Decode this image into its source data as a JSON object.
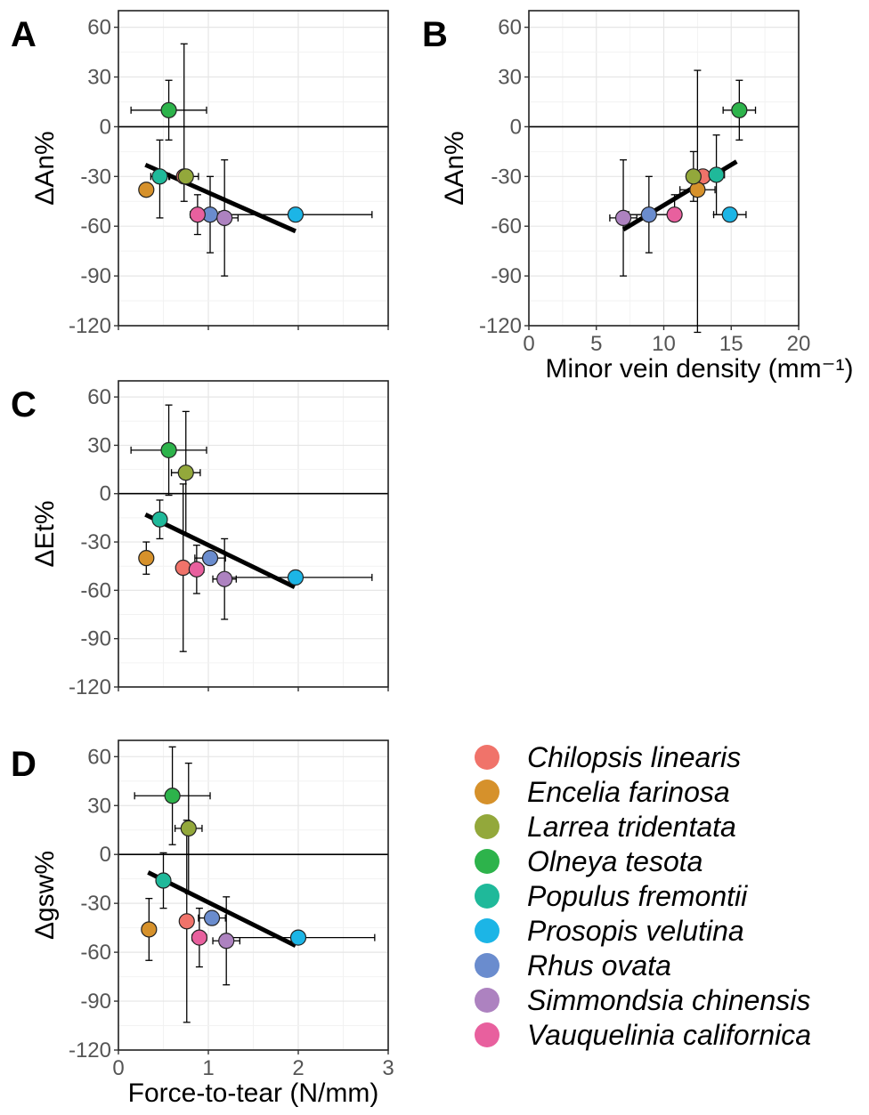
{
  "chart_data": [
    {
      "type": "scatter",
      "panel_label": "A",
      "xlabel": "",
      "ylabel": "ΔAn%",
      "xlim": [
        0,
        3
      ],
      "ylim": [
        -120,
        70
      ],
      "xticks": [
        0,
        1,
        2,
        3
      ],
      "yticks": [
        60,
        30,
        0,
        -30,
        -60,
        -90,
        -120
      ],
      "show_xtick_labels": false,
      "grid": true,
      "zero_line": true,
      "fit_line": [
        [
          0.3,
          -23
        ],
        [
          1.97,
          -63
        ]
      ],
      "points": [
        {
          "species": "Chilopsis linearis",
          "x": 0.73,
          "y": -30,
          "xerr": 0.16,
          "yerr": [
            80,
            15
          ]
        },
        {
          "species": "Encelia farinosa",
          "x": 0.31,
          "y": -38,
          "xerr": 0,
          "yerr": [
            0,
            0
          ]
        },
        {
          "species": "Larrea tridentata",
          "x": 0.75,
          "y": -30,
          "xerr": 0,
          "yerr": [
            0,
            0
          ]
        },
        {
          "species": "Olneya tesota",
          "x": 0.56,
          "y": 10,
          "xerr": 0.42,
          "yerr": [
            18,
            18
          ]
        },
        {
          "species": "Populus fremontii",
          "x": 0.46,
          "y": -30,
          "xerr": 0.1,
          "yerr": [
            22,
            25
          ]
        },
        {
          "species": "Prosopis velutina",
          "x": 1.97,
          "y": -53,
          "xerr": 0.85,
          "yerr": [
            0,
            0
          ]
        },
        {
          "species": "Rhus ovata",
          "x": 1.02,
          "y": -53,
          "xerr": 0.13,
          "yerr": [
            23,
            23
          ]
        },
        {
          "species": "Simmondsia chinensis",
          "x": 1.18,
          "y": -55,
          "xerr": 0.15,
          "yerr": [
            35,
            35
          ]
        },
        {
          "species": "Vauquelinia californica",
          "x": 0.88,
          "y": -53,
          "xerr": 0.08,
          "yerr": [
            12,
            12
          ]
        }
      ]
    },
    {
      "type": "scatter",
      "panel_label": "B",
      "xlabel": "Minor vein density (mm⁻¹)",
      "ylabel": "ΔAn%",
      "xlim": [
        0,
        20
      ],
      "ylim": [
        -120,
        70
      ],
      "xticks": [
        0,
        5,
        10,
        15,
        20
      ],
      "yticks": [
        60,
        30,
        0,
        -30,
        -60,
        -90,
        -120
      ],
      "show_xtick_labels": true,
      "grid": true,
      "zero_line": true,
      "fit_line": [
        [
          7,
          -62
        ],
        [
          15.4,
          -21
        ]
      ],
      "points": [
        {
          "species": "Chilopsis linearis",
          "x": 12.9,
          "y": -30,
          "xerr": 0.5,
          "yerr": [
            0,
            0
          ]
        },
        {
          "species": "Encelia farinosa",
          "x": 12.5,
          "y": -38,
          "xerr": 1.3,
          "yerr": [
            72,
            86
          ]
        },
        {
          "species": "Larrea tridentata",
          "x": 12.2,
          "y": -30,
          "xerr": 0.4,
          "yerr": [
            15,
            15
          ]
        },
        {
          "species": "Olneya tesota",
          "x": 15.6,
          "y": 10,
          "xerr": 1.2,
          "yerr": [
            18,
            18
          ]
        },
        {
          "species": "Populus fremontii",
          "x": 13.9,
          "y": -29,
          "xerr": 0.6,
          "yerr": [
            24,
            24
          ]
        },
        {
          "species": "Prosopis velutina",
          "x": 14.9,
          "y": -53,
          "xerr": 1.2,
          "yerr": [
            0,
            0
          ]
        },
        {
          "species": "Rhus ovata",
          "x": 8.9,
          "y": -53,
          "xerr": 1.5,
          "yerr": [
            23,
            23
          ]
        },
        {
          "species": "Simmondsia chinensis",
          "x": 7.0,
          "y": -55,
          "xerr": 1.0,
          "yerr": [
            35,
            35
          ]
        },
        {
          "species": "Vauquelinia californica",
          "x": 10.8,
          "y": -53,
          "xerr": 0,
          "yerr": [
            12,
            0
          ]
        }
      ]
    },
    {
      "type": "scatter",
      "panel_label": "C",
      "xlabel": "",
      "ylabel": "ΔEt%",
      "xlim": [
        0,
        3
      ],
      "ylim": [
        -120,
        70
      ],
      "xticks": [
        0,
        1,
        2,
        3
      ],
      "yticks": [
        60,
        30,
        0,
        -30,
        -60,
        -90,
        -120
      ],
      "show_xtick_labels": false,
      "grid": true,
      "zero_line": true,
      "fit_line": [
        [
          0.3,
          -13
        ],
        [
          1.96,
          -58
        ]
      ],
      "points": [
        {
          "species": "Chilopsis linearis",
          "x": 0.72,
          "y": -46,
          "xerr": 0,
          "yerr": [
            52,
            52
          ]
        },
        {
          "species": "Encelia farinosa",
          "x": 0.31,
          "y": -40,
          "xerr": 0,
          "yerr": [
            10,
            10
          ]
        },
        {
          "species": "Larrea tridentata",
          "x": 0.75,
          "y": 13,
          "xerr": 0.16,
          "yerr": [
            38,
            38
          ]
        },
        {
          "species": "Olneya tesota",
          "x": 0.56,
          "y": 27,
          "xerr": 0.42,
          "yerr": [
            28,
            28
          ]
        },
        {
          "species": "Populus fremontii",
          "x": 0.46,
          "y": -16,
          "xerr": 0,
          "yerr": [
            12,
            12
          ]
        },
        {
          "species": "Prosopis velutina",
          "x": 1.97,
          "y": -52,
          "xerr": 0.85,
          "yerr": [
            0,
            0
          ]
        },
        {
          "species": "Rhus ovata",
          "x": 1.02,
          "y": -40,
          "xerr": 0.17,
          "yerr": [
            0,
            0
          ]
        },
        {
          "species": "Simmondsia chinensis",
          "x": 1.18,
          "y": -53,
          "xerr": 0.13,
          "yerr": [
            25,
            25
          ]
        },
        {
          "species": "Vauquelinia californica",
          "x": 0.87,
          "y": -47,
          "xerr": 0.08,
          "yerr": [
            15,
            15
          ]
        }
      ]
    },
    {
      "type": "scatter",
      "panel_label": "D",
      "xlabel": "Force-to-tear (N/mm)",
      "ylabel": "Δgsw%",
      "xlim": [
        0,
        3
      ],
      "ylim": [
        -120,
        70
      ],
      "xticks": [
        0,
        1,
        2,
        3
      ],
      "yticks": [
        60,
        30,
        0,
        -30,
        -60,
        -90,
        -120
      ],
      "show_xtick_labels": true,
      "grid": true,
      "zero_line": true,
      "fit_line": [
        [
          0.33,
          -11
        ],
        [
          1.97,
          -56
        ]
      ],
      "points": [
        {
          "species": "Chilopsis linearis",
          "x": 0.76,
          "y": -41,
          "xerr": 0,
          "yerr": [
            62,
            62
          ]
        },
        {
          "species": "Encelia farinosa",
          "x": 0.34,
          "y": -46,
          "xerr": 0,
          "yerr": [
            19,
            19
          ]
        },
        {
          "species": "Larrea tridentata",
          "x": 0.78,
          "y": 16,
          "xerr": 0.15,
          "yerr": [
            40,
            40
          ]
        },
        {
          "species": "Olneya tesota",
          "x": 0.6,
          "y": 36,
          "xerr": 0.42,
          "yerr": [
            30,
            30
          ]
        },
        {
          "species": "Populus fremontii",
          "x": 0.5,
          "y": -16,
          "xerr": 0,
          "yerr": [
            17,
            17
          ]
        },
        {
          "species": "Prosopis velutina",
          "x": 2.0,
          "y": -51,
          "xerr": 0.85,
          "yerr": [
            0,
            0
          ]
        },
        {
          "species": "Rhus ovata",
          "x": 1.04,
          "y": -39,
          "xerr": 0.15,
          "yerr": [
            0,
            0
          ]
        },
        {
          "species": "Simmondsia chinensis",
          "x": 1.2,
          "y": -53,
          "xerr": 0.15,
          "yerr": [
            27,
            27
          ]
        },
        {
          "species": "Vauquelinia californica",
          "x": 0.9,
          "y": -51,
          "xerr": 0.08,
          "yerr": [
            18,
            18
          ]
        }
      ]
    }
  ],
  "legend": [
    {
      "name": "Chilopsis linearis",
      "color": "#f0736a"
    },
    {
      "name": "Encelia farinosa",
      "color": "#d6912b"
    },
    {
      "name": "Larrea tridentata",
      "color": "#93a83b"
    },
    {
      "name": "Olneya tesota",
      "color": "#2db34b"
    },
    {
      "name": "Populus fremontii",
      "color": "#1fb99a"
    },
    {
      "name": "Prosopis velutina",
      "color": "#1cb5e6"
    },
    {
      "name": "Rhus ovata",
      "color": "#6a8cce"
    },
    {
      "name": "Simmondsia chinensis",
      "color": "#ad82c0"
    },
    {
      "name": "Vauquelinia californica",
      "color": "#e8609e"
    }
  ]
}
